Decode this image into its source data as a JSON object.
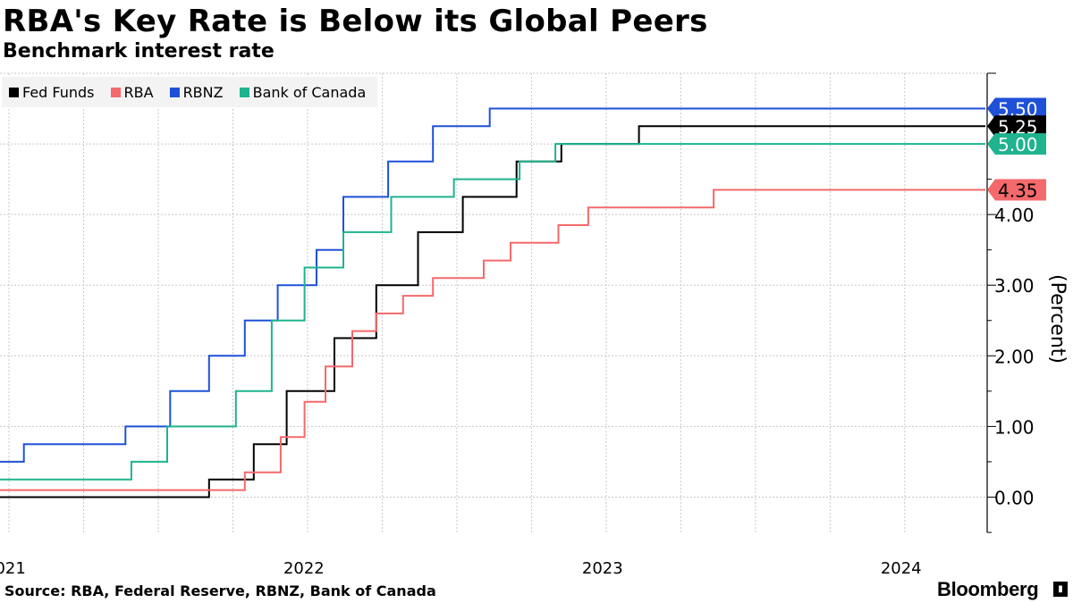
{
  "header": {
    "title": "RBA's Key Rate is Below its Global Peers",
    "subtitle": "Benchmark interest rate"
  },
  "footer": {
    "source": "Source: RBA, Federal Reserve, RBNZ, Bank of Canada",
    "brand": "Bloomberg"
  },
  "colors": {
    "fed": "#000000",
    "rba": "#f4696b",
    "rbnz": "#1f50d8",
    "boc": "#1fb38e",
    "grid": "#c8c8c8"
  },
  "chart_data": {
    "type": "line",
    "step": true,
    "title": "RBA's Key Rate is Below its Global Peers",
    "subtitle": "Benchmark interest rate",
    "ylabel": "(Percent)",
    "ylim": [
      -0.5,
      6.0
    ],
    "xlim": [
      2020.97,
      2024.27
    ],
    "y_ticks": [
      {
        "value": 0,
        "label": "0.00"
      },
      {
        "value": 1,
        "label": "1.00"
      },
      {
        "value": 2,
        "label": "2.00"
      },
      {
        "value": 3,
        "label": "3.00"
      },
      {
        "value": 4,
        "label": "4.00"
      }
    ],
    "x_ticks": [
      {
        "value": 2021.0,
        "label": "2021"
      },
      {
        "value": 2022.0,
        "label": "2022"
      },
      {
        "value": 2023.0,
        "label": "2023"
      },
      {
        "value": 2024.0,
        "label": "2024"
      }
    ],
    "x_minor_grid": [
      2021.25,
      2021.5,
      2021.75,
      2022.25,
      2022.5,
      2022.75,
      2023.25,
      2023.5,
      2023.75
    ],
    "legend_position": "top-left",
    "series": [
      {
        "name": "Fed Funds",
        "color": "#000000",
        "last_label": "5.25",
        "points": [
          [
            2020.97,
            0.0
          ],
          [
            2021.67,
            0.25
          ],
          [
            2021.82,
            0.75
          ],
          [
            2021.93,
            1.5
          ],
          [
            2022.09,
            2.25
          ],
          [
            2022.23,
            3.0
          ],
          [
            2022.37,
            3.75
          ],
          [
            2022.52,
            4.25
          ],
          [
            2022.7,
            4.75
          ],
          [
            2022.85,
            5.0
          ],
          [
            2023.11,
            5.25
          ],
          [
            2024.27,
            5.25
          ]
        ]
      },
      {
        "name": "RBA",
        "color": "#f4696b",
        "last_label": "4.35",
        "points": [
          [
            2020.97,
            0.1
          ],
          [
            2021.79,
            0.35
          ],
          [
            2021.91,
            0.85
          ],
          [
            2021.99,
            1.35
          ],
          [
            2022.06,
            1.85
          ],
          [
            2022.15,
            2.35
          ],
          [
            2022.23,
            2.6
          ],
          [
            2022.32,
            2.85
          ],
          [
            2022.42,
            3.1
          ],
          [
            2022.59,
            3.35
          ],
          [
            2022.68,
            3.6
          ],
          [
            2022.84,
            3.85
          ],
          [
            2022.94,
            4.1
          ],
          [
            2023.36,
            4.35
          ],
          [
            2024.27,
            4.35
          ]
        ]
      },
      {
        "name": "RBNZ",
        "color": "#1f50d8",
        "last_label": "5.50",
        "points": [
          [
            2020.97,
            0.5
          ],
          [
            2021.05,
            0.75
          ],
          [
            2021.39,
            1.0
          ],
          [
            2021.54,
            1.5
          ],
          [
            2021.67,
            2.0
          ],
          [
            2021.79,
            2.5
          ],
          [
            2021.9,
            3.0
          ],
          [
            2022.03,
            3.5
          ],
          [
            2022.12,
            4.25
          ],
          [
            2022.27,
            4.75
          ],
          [
            2022.42,
            5.25
          ],
          [
            2022.61,
            5.5
          ],
          [
            2024.27,
            5.5
          ]
        ]
      },
      {
        "name": "Bank of Canada",
        "color": "#1fb38e",
        "last_label": "5.00",
        "points": [
          [
            2020.97,
            0.25
          ],
          [
            2021.41,
            0.5
          ],
          [
            2021.53,
            1.0
          ],
          [
            2021.76,
            1.5
          ],
          [
            2021.88,
            2.5
          ],
          [
            2021.99,
            3.25
          ],
          [
            2022.12,
            3.75
          ],
          [
            2022.28,
            4.25
          ],
          [
            2022.49,
            4.5
          ],
          [
            2022.71,
            4.75
          ],
          [
            2022.83,
            5.0
          ],
          [
            2024.27,
            5.0
          ]
        ]
      }
    ]
  }
}
